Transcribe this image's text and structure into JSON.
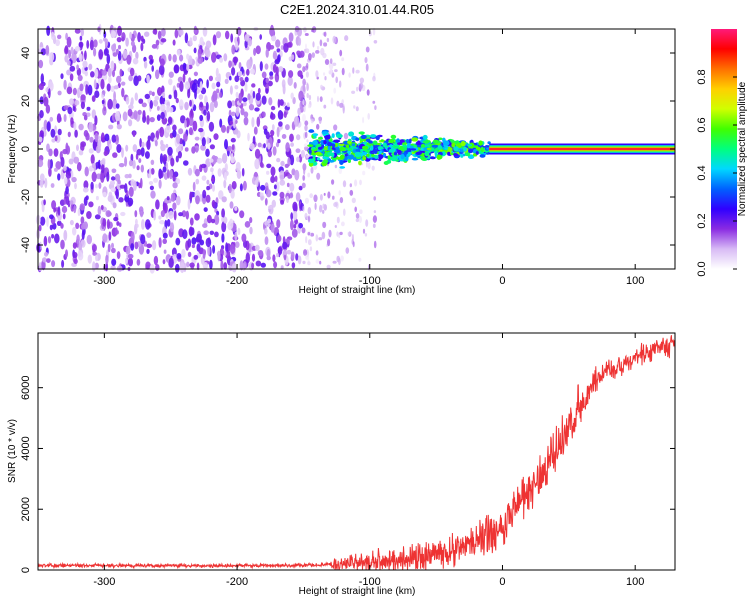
{
  "title": "C2E1.2024.310.01.44.R05",
  "chart_data": [
    {
      "type": "heatmap",
      "xlabel": "Height of straight line (km)",
      "ylabel": "Frequency (Hz)",
      "xlim": [
        -350,
        130
      ],
      "ylim": [
        -50,
        50
      ],
      "xticks": [
        -300,
        -200,
        -100,
        0,
        100
      ],
      "yticks": [
        -40,
        -20,
        0,
        20,
        40
      ],
      "colorbar": {
        "label": "Normalized spectral amplitude",
        "range": [
          0.0,
          1.0
        ],
        "ticks": [
          0.0,
          0.2,
          0.4,
          0.6,
          0.8
        ],
        "colormap": [
          "#ffffff",
          "#d8bbf5",
          "#8a2be2",
          "#3000ff",
          "#0060ff",
          "#00d8ff",
          "#00ff7f",
          "#40ff00",
          "#d0ff00",
          "#ffd000",
          "#ff7000",
          "#ff0000",
          "#ff1a7a"
        ]
      },
      "regions": [
        {
          "x_range": [
            -350,
            -150
          ],
          "freq_range": [
            -50,
            50
          ],
          "amplitude": 0.15,
          "pattern": "broadband noise"
        },
        {
          "x_range": [
            -150,
            -95
          ],
          "freq_range": [
            -50,
            50
          ],
          "amplitude": 0.05,
          "pattern": "sparse noise"
        },
        {
          "x_range": [
            -145,
            -10
          ],
          "freq_range": [
            -8,
            8
          ],
          "amplitude": 0.45,
          "pattern": "band"
        },
        {
          "x_range": [
            -10,
            130
          ],
          "freq_range": [
            -1,
            1
          ],
          "amplitude": 0.95,
          "pattern": "narrow line at 0 Hz"
        }
      ]
    },
    {
      "type": "line",
      "xlabel": "Height of straight line (km)",
      "ylabel": "SNR (10 * v/v)",
      "xlim": [
        -350,
        130
      ],
      "ylim": [
        0,
        7800
      ],
      "xticks": [
        -300,
        -200,
        -100,
        0,
        100
      ],
      "yticks": [
        0,
        2000,
        4000,
        6000
      ],
      "color": "#ee3333",
      "series": [
        {
          "x": [
            -350,
            -300,
            -250,
            -200,
            -150,
            -130,
            -110,
            -100,
            -90,
            -80,
            -70,
            -60,
            -50,
            -40,
            -30,
            -20,
            -10,
            0,
            10,
            20,
            30,
            40,
            50,
            60,
            70,
            80,
            90,
            100,
            110,
            120,
            130
          ],
          "values": [
            150,
            150,
            140,
            140,
            150,
            180,
            220,
            250,
            280,
            330,
            380,
            440,
            520,
            620,
            750,
            950,
            1200,
            1450,
            2100,
            2600,
            3200,
            3900,
            4600,
            5500,
            6200,
            6600,
            6800,
            7000,
            7150,
            7300,
            7400
          ]
        }
      ]
    }
  ]
}
